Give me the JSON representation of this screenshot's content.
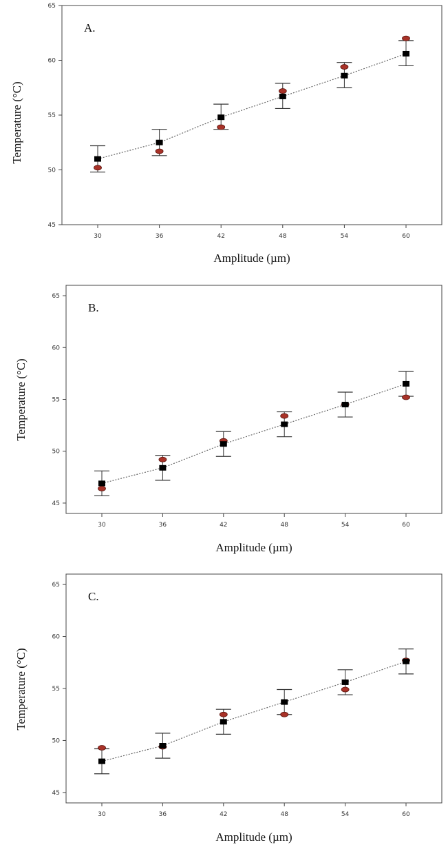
{
  "colors": {
    "predicted": "#000000",
    "actual": "#a83228",
    "actual_stroke": "#5a120c",
    "trend": "#666666",
    "error_bar": "#333333",
    "frame": "#444444"
  },
  "chart_data": [
    {
      "type": "scatter",
      "panel_label": "A.",
      "xlabel": "Amplitude (µm)",
      "ylabel": "Temperature (°C)",
      "x": [
        30,
        36,
        42,
        48,
        54,
        60
      ],
      "xticks": [
        "30",
        "36",
        "42",
        "48",
        "54",
        "60"
      ],
      "ylim": [
        45,
        65
      ],
      "yticks": [
        "45",
        "50",
        "55",
        "60",
        "65"
      ],
      "grid": false,
      "legend": "none",
      "series": [
        {
          "role": "predicted",
          "values": [
            51.0,
            52.5,
            54.8,
            56.7,
            58.6,
            60.6
          ],
          "error_low": [
            49.8,
            51.3,
            53.7,
            55.6,
            57.5,
            59.5
          ],
          "error_high": [
            52.2,
            53.7,
            56.0,
            57.9,
            59.8,
            61.8
          ]
        },
        {
          "role": "actual",
          "values": [
            50.2,
            51.7,
            53.9,
            57.2,
            59.4,
            62.0
          ]
        }
      ]
    },
    {
      "type": "scatter",
      "panel_label": "B.",
      "xlabel": "Amplitude (µm)",
      "ylabel": "Temperature (°C)",
      "x": [
        30,
        36,
        42,
        48,
        54,
        60
      ],
      "xticks": [
        "30",
        "36",
        "42",
        "48",
        "54",
        "60"
      ],
      "ylim": [
        44,
        66
      ],
      "yticks": [
        "45",
        "50",
        "55",
        "60",
        "65"
      ],
      "grid": false,
      "legend": "none",
      "series": [
        {
          "role": "predicted",
          "values": [
            46.9,
            48.4,
            50.7,
            52.6,
            54.5,
            56.5
          ],
          "error_low": [
            45.7,
            47.2,
            49.5,
            51.4,
            53.3,
            55.3
          ],
          "error_high": [
            48.1,
            49.6,
            51.9,
            53.8,
            55.7,
            57.7
          ]
        },
        {
          "role": "actual",
          "values": [
            46.4,
            49.2,
            51.0,
            53.4,
            54.5,
            55.2
          ]
        }
      ]
    },
    {
      "type": "scatter",
      "panel_label": "C.",
      "xlabel": "Amplitude (µm)",
      "ylabel": "Temperature (°C)",
      "x": [
        30,
        36,
        42,
        48,
        54,
        60
      ],
      "xticks": [
        "30",
        "36",
        "42",
        "48",
        "54",
        "60"
      ],
      "ylim": [
        44,
        66
      ],
      "yticks": [
        "45",
        "50",
        "55",
        "60",
        "65"
      ],
      "grid": false,
      "legend": "none",
      "series": [
        {
          "role": "predicted",
          "values": [
            48.0,
            49.5,
            51.8,
            53.7,
            55.6,
            57.6
          ],
          "error_low": [
            46.8,
            48.3,
            50.6,
            52.5,
            54.4,
            56.4
          ],
          "error_high": [
            49.2,
            50.7,
            53.0,
            54.9,
            56.8,
            58.8
          ]
        },
        {
          "role": "actual",
          "values": [
            49.3,
            49.4,
            52.5,
            52.5,
            54.9,
            57.7
          ]
        }
      ]
    }
  ]
}
